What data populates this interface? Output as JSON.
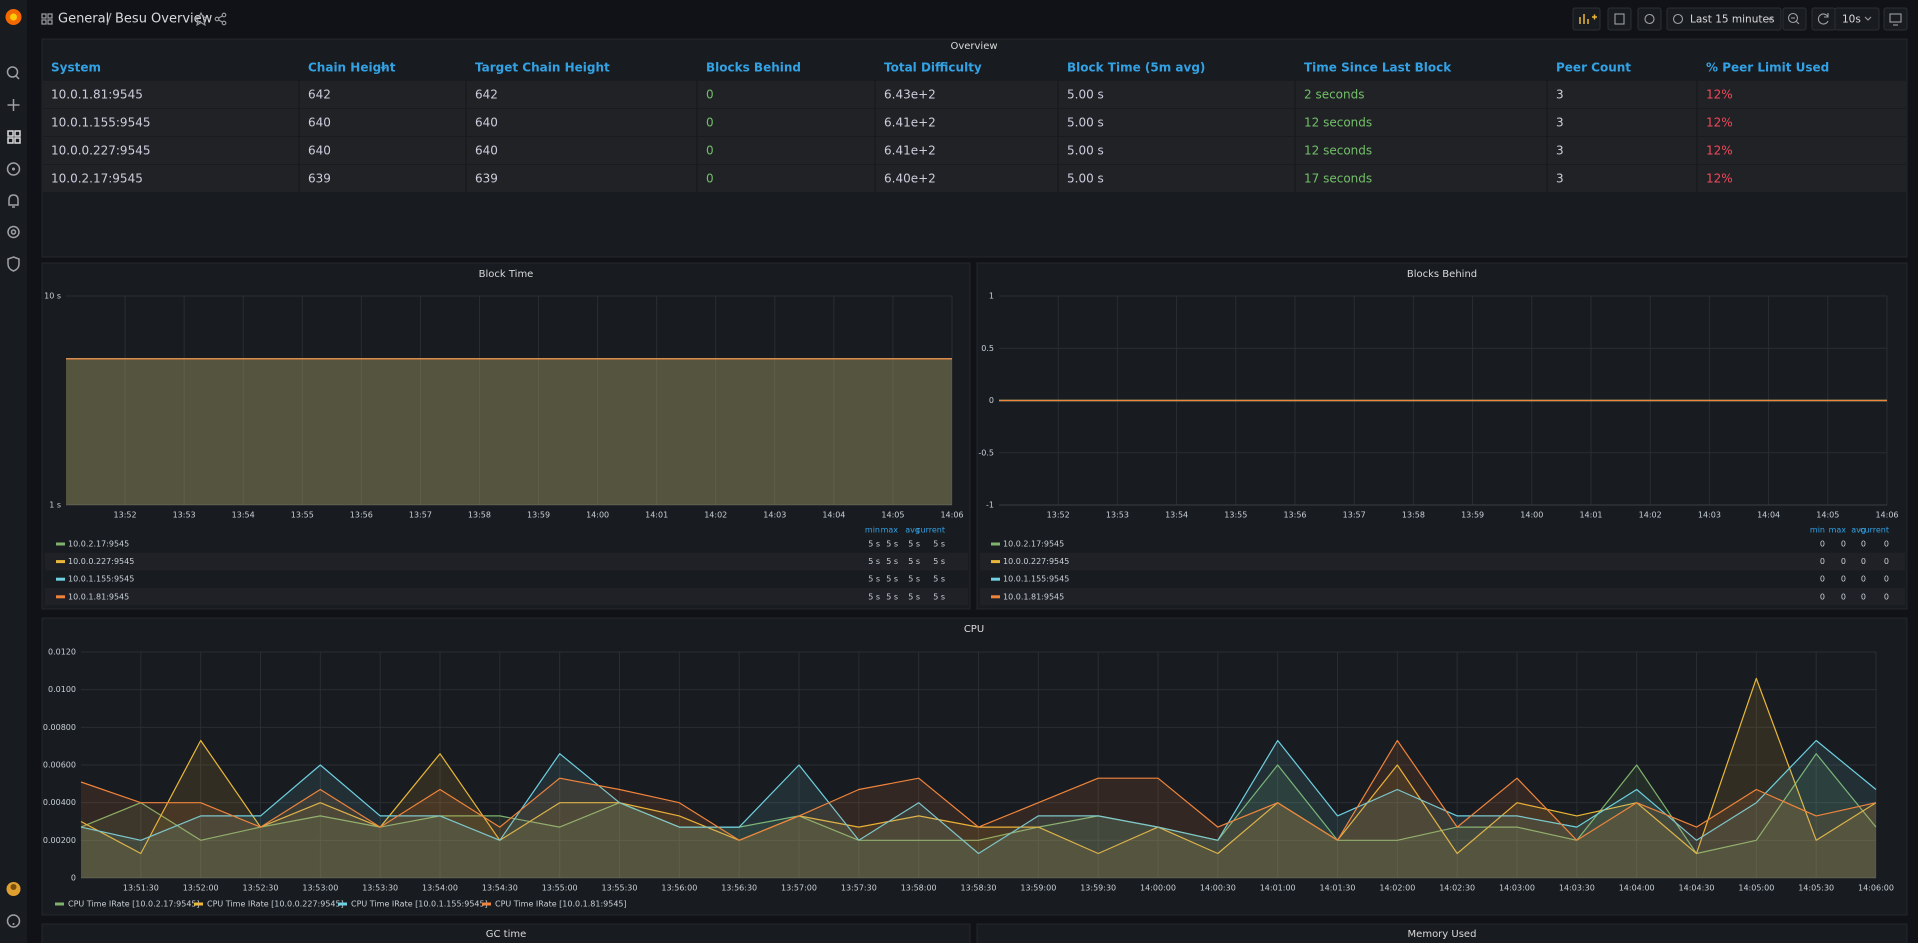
{
  "header": {
    "folder": "General",
    "dashboard": "Besu Overview",
    "time_range": "Last 15 minutes",
    "refresh": "10s"
  },
  "table": {
    "title": "Overview",
    "columns": [
      "System",
      "Chain Height",
      "Target Chain Height",
      "Blocks Behind",
      "Total Difficulty",
      "Block Time (5m avg)",
      "Time Since Last Block",
      "Peer Count",
      "% Peer Limit Used"
    ],
    "rows": [
      [
        "10.0.1.81:9545",
        642,
        642,
        0,
        "6.43e+2",
        "5.00 s",
        "2 seconds",
        3,
        "12%"
      ],
      [
        "10.0.1.155:9545",
        640,
        640,
        0,
        "6.41e+2",
        "5.00 s",
        "12 seconds",
        3,
        "12%"
      ],
      [
        "10.0.0.227:9545",
        640,
        640,
        0,
        "6.41e+2",
        "5.00 s",
        "12 seconds",
        3,
        "12%"
      ],
      [
        "10.0.2.17:9545",
        639,
        639,
        0,
        "6.40e+2",
        "5.00 s",
        "17 seconds",
        3,
        "12%"
      ]
    ]
  },
  "chart_data": [
    {
      "type": "line",
      "title": "Block Time",
      "log": true,
      "grid": true,
      "x": [
        null,
        "13:52",
        "13:53",
        "13:54",
        "13:55",
        "13:56",
        "13:57",
        "13:58",
        "13:59",
        "14:00",
        "14:01",
        "14:02",
        "14:03",
        "14:04",
        "14:05",
        "14:06"
      ],
      "ylim": [
        1,
        10
      ],
      "yticks": [
        {
          "value": 1,
          "label": "1 s"
        },
        {
          "value": 10,
          "label": "10 s"
        }
      ],
      "stat_columns": [
        "min",
        "max",
        "avg",
        "current"
      ],
      "series": [
        {
          "name": "10.0.2.17:9545",
          "color": "#7eb26d",
          "values": [
            5,
            5,
            5,
            5,
            5,
            5,
            5,
            5,
            5,
            5,
            5,
            5,
            5,
            5,
            5,
            5
          ],
          "stats": [
            "5 s",
            "5 s",
            "5 s",
            "5 s"
          ]
        },
        {
          "name": "10.0.0.227:9545",
          "color": "#eab839",
          "values": [
            5,
            5,
            5,
            5,
            5,
            5,
            5,
            5,
            5,
            5,
            5,
            5,
            5,
            5,
            5,
            5
          ],
          "stats": [
            "5 s",
            "5 s",
            "5 s",
            "5 s"
          ]
        },
        {
          "name": "10.0.1.155:9545",
          "color": "#6ed0e0",
          "values": [
            5,
            5,
            5,
            5,
            5,
            5,
            5,
            5,
            5,
            5,
            5,
            5,
            5,
            5,
            5,
            5
          ],
          "stats": [
            "5 s",
            "5 s",
            "5 s",
            "5 s"
          ]
        },
        {
          "name": "10.0.1.81:9545",
          "color": "#ef843c",
          "values": [
            5,
            5,
            5,
            5,
            5,
            5,
            5,
            5,
            5,
            5,
            5,
            5,
            5,
            5,
            5,
            5
          ],
          "stats": [
            "5 s",
            "5 s",
            "5 s",
            "5 s"
          ]
        }
      ]
    },
    {
      "type": "line",
      "title": "Blocks Behind",
      "log": false,
      "grid": true,
      "x": [
        null,
        "13:52",
        "13:53",
        "13:54",
        "13:55",
        "13:56",
        "13:57",
        "13:58",
        "13:59",
        "14:00",
        "14:01",
        "14:02",
        "14:03",
        "14:04",
        "14:05",
        "14:06"
      ],
      "ylim": [
        -1,
        1
      ],
      "yticks": [
        -1,
        -0.5,
        0,
        0.5,
        1
      ],
      "stat_columns": [
        "min",
        "max",
        "avg",
        "current"
      ],
      "series": [
        {
          "name": "10.0.2.17:9545",
          "color": "#7eb26d",
          "values": [
            0,
            0,
            0,
            0,
            0,
            0,
            0,
            0,
            0,
            0,
            0,
            0,
            0,
            0,
            0,
            0
          ],
          "stats": [
            0,
            0,
            0,
            0
          ]
        },
        {
          "name": "10.0.0.227:9545",
          "color": "#eab839",
          "values": [
            0,
            0,
            0,
            0,
            0,
            0,
            0,
            0,
            0,
            0,
            0,
            0,
            0,
            0,
            0,
            0
          ],
          "stats": [
            0,
            0,
            0,
            0
          ]
        },
        {
          "name": "10.0.1.155:9545",
          "color": "#6ed0e0",
          "values": [
            0,
            0,
            0,
            0,
            0,
            0,
            0,
            0,
            0,
            0,
            0,
            0,
            0,
            0,
            0,
            0
          ],
          "stats": [
            0,
            0,
            0,
            0
          ]
        },
        {
          "name": "10.0.1.81:9545",
          "color": "#ef843c",
          "values": [
            0,
            0,
            0,
            0,
            0,
            0,
            0,
            0,
            0,
            0,
            0,
            0,
            0,
            0,
            0,
            0
          ],
          "stats": [
            0,
            0,
            0,
            0
          ]
        }
      ]
    },
    {
      "type": "line",
      "title": "CPU",
      "log": false,
      "grid": true,
      "x": [
        null,
        "13:51:30",
        "13:52:00",
        "13:52:30",
        "13:53:00",
        "13:53:30",
        "13:54:00",
        "13:54:30",
        "13:55:00",
        "13:55:30",
        "13:56:00",
        "13:56:30",
        "13:57:00",
        "13:57:30",
        "13:58:00",
        "13:58:30",
        "13:59:00",
        "13:59:30",
        "14:00:00",
        "14:00:30",
        "14:01:00",
        "14:01:30",
        "14:02:00",
        "14:02:30",
        "14:03:00",
        "14:03:30",
        "14:04:00",
        "14:04:30",
        "14:05:00",
        "14:05:30",
        "14:06:00"
      ],
      "ylim": [
        0,
        0.012
      ],
      "yticks": [
        0,
        {
          "value": 0.002,
          "label": "0.00200"
        },
        {
          "value": 0.004,
          "label": "0.00400"
        },
        {
          "value": 0.006,
          "label": "0.00600"
        },
        {
          "value": 0.008,
          "label": "0.00800"
        },
        {
          "value": 0.01,
          "label": "0.0100"
        },
        {
          "value": 0.012,
          "label": "0.0120"
        }
      ],
      "series": [
        {
          "name": "CPU Time IRate [10.0.2.17:9545]",
          "color": "#7eb26d",
          "values": [
            0.0027,
            0.004,
            0.002,
            0.0027,
            0.0033,
            0.0027,
            0.0033,
            0.0033,
            0.0027,
            0.004,
            0.0027,
            0.0027,
            0.0033,
            0.002,
            0.002,
            0.002,
            0.0027,
            0.0033,
            0.0027,
            0.002,
            0.006,
            0.002,
            0.002,
            0.0027,
            0.0027,
            0.002,
            0.006,
            0.0013,
            0.002,
            0.0066,
            0.0027
          ]
        },
        {
          "name": "CPU Time IRate [10.0.0.227:9545]",
          "color": "#eab839",
          "values": [
            0.003,
            0.0013,
            0.0073,
            0.0027,
            0.004,
            0.0027,
            0.0066,
            0.002,
            0.004,
            0.004,
            0.0033,
            0.002,
            0.0033,
            0.0027,
            0.0033,
            0.0027,
            0.0027,
            0.0013,
            0.0027,
            0.0013,
            0.004,
            0.002,
            0.006,
            0.0013,
            0.004,
            0.0033,
            0.004,
            0.0013,
            0.0106,
            0.002,
            0.004
          ]
        },
        {
          "name": "CPU Time IRate [10.0.1.155:9545]",
          "color": "#6ed0e0",
          "values": [
            0.0027,
            0.002,
            0.0033,
            0.0033,
            0.006,
            0.0033,
            0.0033,
            0.002,
            0.0066,
            0.004,
            0.0027,
            0.0027,
            0.006,
            0.002,
            0.004,
            0.0013,
            0.0033,
            0.0033,
            0.0027,
            0.002,
            0.0073,
            0.0033,
            0.0047,
            0.0033,
            0.0033,
            0.0027,
            0.0047,
            0.002,
            0.004,
            0.0073,
            0.0047
          ]
        },
        {
          "name": "CPU Time IRate [10.0.1.81:9545]",
          "color": "#ef843c",
          "values": [
            0.0051,
            0.004,
            0.004,
            0.0027,
            0.0047,
            0.0027,
            0.0047,
            0.0027,
            0.0053,
            0.0047,
            0.004,
            0.002,
            0.0033,
            0.0047,
            0.0053,
            0.0027,
            0.004,
            0.0053,
            0.0053,
            0.0027,
            0.004,
            0.002,
            0.0073,
            0.0027,
            0.0053,
            0.002,
            0.004,
            0.0027,
            0.0047,
            0.0033,
            0.004
          ]
        }
      ]
    }
  ],
  "panels_below": [
    "GC time",
    "Memory Used"
  ]
}
